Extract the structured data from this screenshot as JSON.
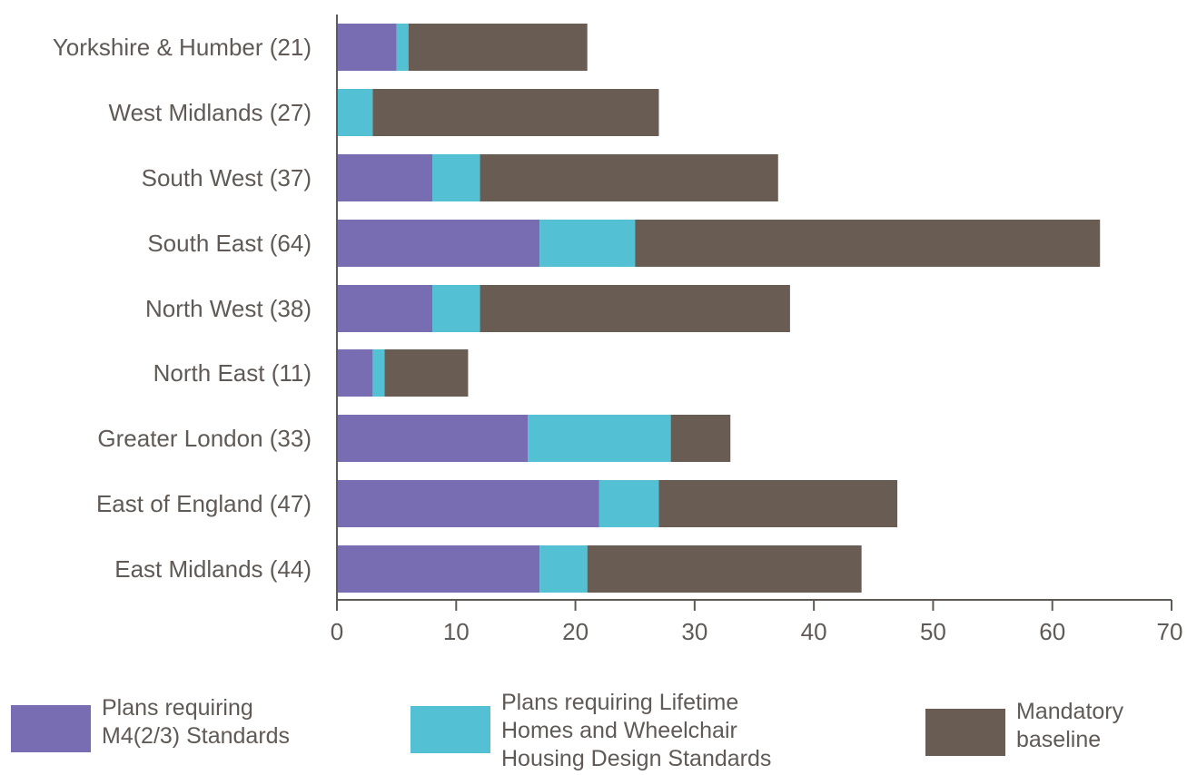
{
  "chart_data": {
    "type": "bar",
    "orientation": "horizontal",
    "stacked": true,
    "categories": [
      "Yorkshire & Humber (21)",
      "West Midlands (27)",
      "South West (37)",
      "South East (64)",
      "North West (38)",
      "North East (11)",
      "Greater London (33)",
      "East of England (47)",
      "East Midlands (44)"
    ],
    "series": [
      {
        "name": "Plans requiring M4(2/3) Standards",
        "color": "#786cb2",
        "values": [
          5,
          0,
          8,
          17,
          8,
          3,
          16,
          22,
          17
        ]
      },
      {
        "name": "Plans requiring Lifetime Homes and Wheelchair Housing Design Standards",
        "color": "#54c0d4",
        "values": [
          1,
          3,
          4,
          8,
          4,
          1,
          12,
          5,
          4
        ]
      },
      {
        "name": "Mandatory baseline",
        "color": "#685c53",
        "values": [
          15,
          24,
          25,
          39,
          26,
          7,
          5,
          20,
          23
        ]
      }
    ],
    "xlim": [
      0,
      70
    ],
    "xticks": [
      "0",
      "10",
      "20",
      "30",
      "40",
      "50",
      "60",
      "70"
    ],
    "grid": false,
    "legend_position": "bottom"
  },
  "legend": [
    {
      "lines": [
        "Plans requiring",
        "M4(2/3) Standards"
      ],
      "color": "#786cb2"
    },
    {
      "lines": [
        "Plans requiring Lifetime",
        "Homes and Wheelchair",
        "Housing Design Standards"
      ],
      "color": "#54c0d4"
    },
    {
      "lines": [
        "Mandatory",
        "baseline"
      ],
      "color": "#685c53"
    }
  ]
}
